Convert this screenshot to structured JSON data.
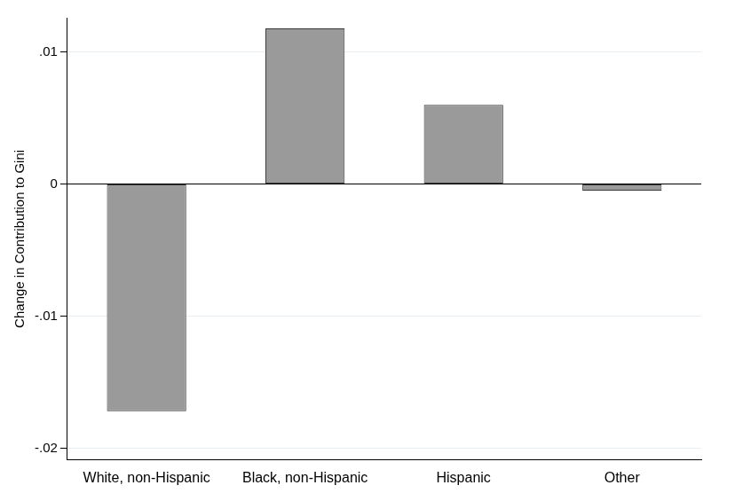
{
  "chart_data": {
    "type": "bar",
    "y_label": "Change in Contribution to Gini",
    "categories": [
      "White, non-Hispanic",
      "Black, non-Hispanic",
      "Hispanic",
      "Other"
    ],
    "values": [
      -0.0172,
      0.0118,
      0.006,
      -0.0005
    ],
    "color": "#9a9a9a",
    "ylim": [
      -0.0209,
      0.0126
    ],
    "yticks": [
      {
        "value": -0.02,
        "label": "-.02"
      },
      {
        "value": -0.01,
        "label": "-.01"
      },
      {
        "value": 0,
        "label": "0"
      },
      {
        "value": 0.01,
        "label": ".01"
      }
    ],
    "grid": true
  }
}
